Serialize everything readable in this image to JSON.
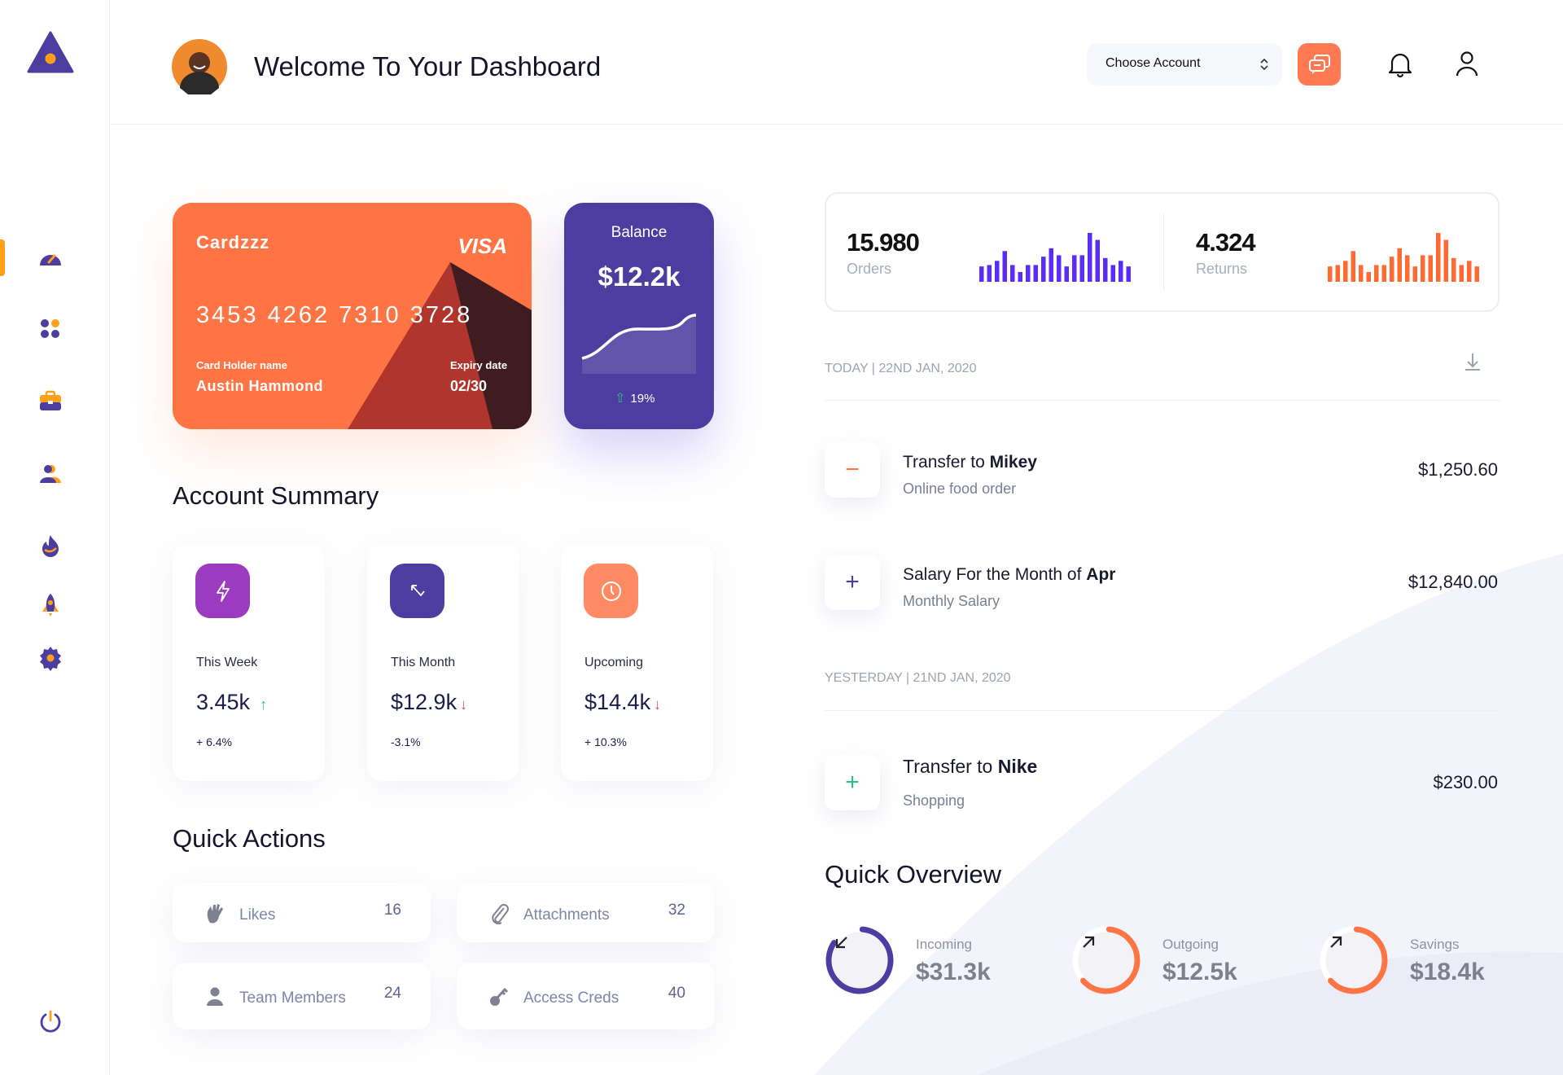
{
  "header": {
    "title": "Welcome To Your Dashboard",
    "account_select": "Choose Account"
  },
  "sidebar": {
    "items": [
      "dashboard-icon",
      "apps-icon",
      "briefcase-icon",
      "users-icon",
      "fire-icon",
      "rocket-icon",
      "settings-icon"
    ],
    "active": "dashboard",
    "bottom": "power-icon"
  },
  "colors": {
    "primary": "#4e3da0",
    "accent": "#ff7444",
    "orange": "#ff9f1a",
    "orders_bars": "#5b2cf5",
    "returns_bars": "#ff6a33",
    "up": "#2ebd85",
    "down": "#e5484d"
  },
  "card": {
    "brand_name": "Cardzzz",
    "network": "VISA",
    "number": "3453 4262 7310 3728",
    "holder_label": "Card Holder name",
    "holder": "Austin Hammond",
    "expiry_label": "Expiry date",
    "expiry": "02/30"
  },
  "balance": {
    "label": "Balance",
    "value": "$12.2k",
    "change": "19%"
  },
  "account_summary": {
    "title": "Account Summary",
    "items": [
      {
        "label": "This Week",
        "value": "3.45k",
        "trend": "up",
        "change": "+ 6.4%",
        "icon": "lightning-icon",
        "color": "#9b3bbf"
      },
      {
        "label": "This Month",
        "value": "$12.9k",
        "trend": "down",
        "change": "-3.1%",
        "icon": "arrow-up-left-icon",
        "color": "#4e3da0"
      },
      {
        "label": "Upcoming",
        "value": "$14.4k",
        "trend": "down",
        "change": "+ 10.3%",
        "icon": "clock-icon",
        "color": "#ff8a63"
      }
    ]
  },
  "quick_actions": {
    "title": "Quick Actions",
    "items": [
      {
        "label": "Likes",
        "count": "16",
        "icon": "hand-wave-icon"
      },
      {
        "label": "Attachments",
        "count": "32",
        "icon": "paperclip-icon"
      },
      {
        "label": "Team Members",
        "count": "24",
        "icon": "user-icon"
      },
      {
        "label": "Access Creds",
        "count": "40",
        "icon": "key-icon"
      }
    ]
  },
  "stats": {
    "orders": {
      "value": "15.980",
      "label": "Orders",
      "bars": [
        55,
        60,
        75,
        110,
        60,
        35,
        60,
        60,
        90,
        120,
        95,
        55,
        95,
        95,
        175,
        150,
        85,
        60,
        75,
        55
      ]
    },
    "returns": {
      "value": "4.324",
      "label": "Returns",
      "bars": [
        55,
        60,
        75,
        110,
        60,
        35,
        60,
        60,
        90,
        120,
        95,
        55,
        95,
        95,
        175,
        150,
        85,
        60,
        75,
        55
      ]
    }
  },
  "transactions": {
    "today_label": "TODAY | 22ND JAN, 2020",
    "yesterday_label": "YESTERDAY | 21ND JAN, 2020",
    "items": [
      {
        "title_prefix": "Transfer to ",
        "title_bold": "Mikey",
        "subtitle": "Online food order",
        "amount": "$1,250.60",
        "type": "minus"
      },
      {
        "title_prefix": "Salary For the Month of ",
        "title_bold": "Apr",
        "subtitle": "Monthly Salary",
        "amount": "$12,840.00",
        "type": "plus"
      },
      {
        "title_prefix": "Transfer to ",
        "title_bold": "Nike",
        "subtitle": "Shopping",
        "amount": "$230.00",
        "type": "plus"
      }
    ]
  },
  "quick_overview": {
    "title": "Quick Overview",
    "items": [
      {
        "label": "Incoming",
        "value": "$31.3k",
        "progress": 0.83,
        "color": "#4e3da0",
        "icon": "arrow-down-left-icon"
      },
      {
        "label": "Outgoing",
        "value": "$12.5k",
        "progress": 0.62,
        "color": "#ff7444",
        "icon": "arrow-up-right-icon"
      },
      {
        "label": "Savings",
        "value": "$18.4k",
        "progress": 0.62,
        "color": "#ff7444",
        "icon": "arrow-up-right-icon"
      }
    ]
  }
}
